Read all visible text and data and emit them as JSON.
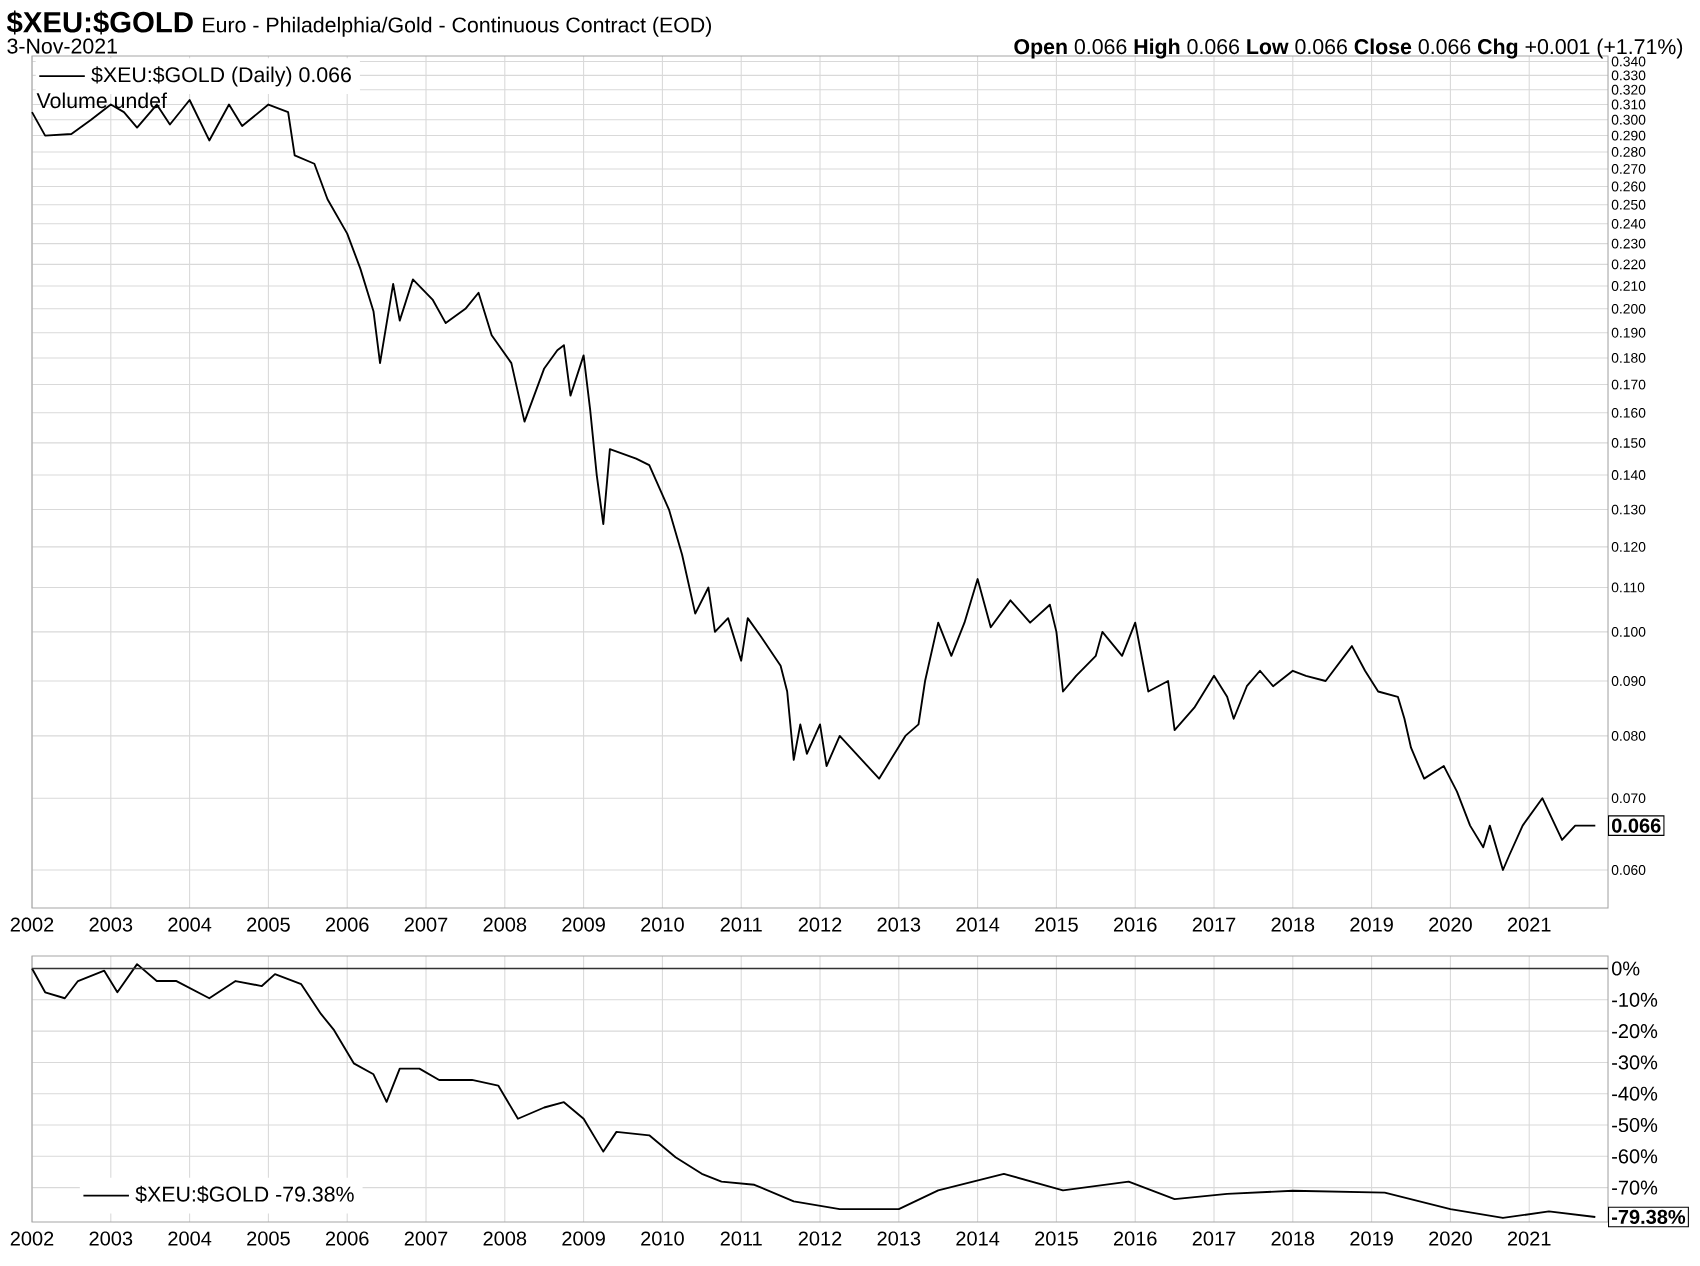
{
  "chart_data": [
    {
      "type": "line",
      "title": "$XEU:$GOLD",
      "subtitle": "Euro - Philadelphia/Gold - Continuous Contract (EOD)",
      "annotations": [
        "3-Nov-2021",
        "**Open** 0.066 **High** 0.066 **Low** 0.066 **Close** 0.066 **Chg** +0.001 (+1.71%)",
        "Volume undef",
        {
          "text": "0.066",
          "x": "2021-11-03",
          "y": 0.066
        }
      ],
      "x": [
        "2002-01",
        "2002-03",
        "2002-07",
        "2002-10",
        "2003-01",
        "2003-03",
        "2003-05",
        "2003-08",
        "2003-10",
        "2004-01",
        "2004-04",
        "2004-07",
        "2004-09",
        "2005-01",
        "2005-04",
        "2005-05",
        "2005-08",
        "2005-10",
        "2006-01",
        "2006-03",
        "2006-05",
        "2006-06",
        "2006-08",
        "2006-09",
        "2006-11",
        "2007-02",
        "2007-04",
        "2007-07",
        "2007-09",
        "2007-11",
        "2008-02",
        "2008-04",
        "2008-07",
        "2008-09",
        "2008-10",
        "2008-11",
        "2009-01",
        "2009-02",
        "2009-03",
        "2009-04",
        "2009-05",
        "2009-09",
        "2009-11",
        "2010-02",
        "2010-04",
        "2010-06",
        "2010-08",
        "2010-09",
        "2010-11",
        "2011-01",
        "2011-02",
        "2011-04",
        "2011-07",
        "2011-08",
        "2011-09",
        "2011-10",
        "2011-11",
        "2012-01",
        "2012-02",
        "2012-04",
        "2012-10",
        "2013-02",
        "2013-04",
        "2013-05",
        "2013-07",
        "2013-09",
        "2013-11",
        "2014-01",
        "2014-03",
        "2014-06",
        "2014-09",
        "2014-12",
        "2015-01",
        "2015-02",
        "2015-04",
        "2015-07",
        "2015-08",
        "2015-11",
        "2016-01",
        "2016-03",
        "2016-06",
        "2016-07",
        "2016-10",
        "2017-01",
        "2017-03",
        "2017-04",
        "2017-06",
        "2017-08",
        "2017-10",
        "2018-01",
        "2018-03",
        "2018-06",
        "2018-10",
        "2018-12",
        "2019-02",
        "2019-05",
        "2019-06",
        "2019-07",
        "2019-09",
        "2019-12",
        "2020-02",
        "2020-04",
        "2020-06",
        "2020-07",
        "2020-09",
        "2020-10",
        "2020-12",
        "2021-03",
        "2021-06",
        "2021-08",
        "2021-11-03"
      ],
      "series": [
        {
          "name": "$XEU:$GOLD (Daily) 0.066",
          "color": "#000000",
          "values": [
            0.305,
            0.29,
            0.291,
            0.3,
            0.31,
            0.305,
            0.295,
            0.31,
            0.297,
            0.313,
            0.287,
            0.31,
            0.296,
            0.31,
            0.305,
            0.278,
            0.273,
            0.253,
            0.235,
            0.218,
            0.199,
            0.178,
            0.211,
            0.195,
            0.213,
            0.204,
            0.194,
            0.2,
            0.207,
            0.189,
            0.178,
            0.157,
            0.176,
            0.183,
            0.185,
            0.166,
            0.181,
            0.161,
            0.14,
            0.126,
            0.148,
            0.145,
            0.143,
            0.13,
            0.118,
            0.104,
            0.11,
            0.1,
            0.103,
            0.094,
            0.103,
            0.099,
            0.093,
            0.088,
            0.076,
            0.082,
            0.077,
            0.082,
            0.075,
            0.08,
            0.073,
            0.08,
            0.082,
            0.09,
            0.102,
            0.095,
            0.102,
            0.112,
            0.101,
            0.107,
            0.102,
            0.106,
            0.1,
            0.088,
            0.091,
            0.095,
            0.1,
            0.095,
            0.102,
            0.088,
            0.09,
            0.081,
            0.085,
            0.091,
            0.087,
            0.083,
            0.089,
            0.092,
            0.089,
            0.092,
            0.091,
            0.09,
            0.097,
            0.092,
            0.088,
            0.087,
            0.083,
            0.078,
            0.073,
            0.075,
            0.071,
            0.066,
            0.063,
            0.066,
            0.06,
            0.062,
            0.066,
            0.07,
            0.064,
            0.066,
            0.066
          ]
        }
      ],
      "log": "y",
      "grid": true,
      "legend": "top left",
      "xlim": [
        "2002-01",
        "2022-01"
      ],
      "xticks": [
        "2002",
        "2003",
        "2004",
        "2005",
        "2006",
        "2007",
        "2008",
        "2009",
        "2010",
        "2011",
        "2012",
        "2013",
        "2014",
        "2015",
        "2016",
        "2017",
        "2018",
        "2019",
        "2020",
        "2021"
      ],
      "ylim": [
        0.0553,
        0.344
      ],
      "yticks": [
        {
          "value": 0.06,
          "label": "0.060"
        },
        {
          "value": 0.07,
          "label": "0.070"
        },
        {
          "value": 0.08,
          "label": "0.080"
        },
        {
          "value": 0.09,
          "label": "0.090"
        },
        {
          "value": 0.1,
          "label": "0.100"
        },
        {
          "value": 0.11,
          "label": "0.110"
        },
        {
          "value": 0.12,
          "label": "0.120"
        },
        {
          "value": 0.13,
          "label": "0.130"
        },
        {
          "value": 0.14,
          "label": "0.140"
        },
        {
          "value": 0.15,
          "label": "0.150"
        },
        {
          "value": 0.16,
          "label": "0.160"
        },
        {
          "value": 0.17,
          "label": "0.170"
        },
        {
          "value": 0.18,
          "label": "0.180"
        },
        {
          "value": 0.19,
          "label": "0.190"
        },
        {
          "value": 0.2,
          "label": "0.200"
        },
        {
          "value": 0.21,
          "label": "0.210"
        },
        {
          "value": 0.22,
          "label": "0.220"
        },
        {
          "value": 0.23,
          "label": "0.230"
        },
        {
          "value": 0.24,
          "label": "0.240"
        },
        {
          "value": 0.25,
          "label": "0.250"
        },
        {
          "value": 0.26,
          "label": "0.260"
        },
        {
          "value": 0.27,
          "label": "0.270"
        },
        {
          "value": 0.28,
          "label": "0.280"
        },
        {
          "value": 0.29,
          "label": "0.290"
        },
        {
          "value": 0.3,
          "label": "0.300"
        },
        {
          "value": 0.31,
          "label": "0.310"
        },
        {
          "value": 0.32,
          "label": "0.320"
        },
        {
          "value": 0.33,
          "label": "0.330"
        },
        {
          "value": 0.34,
          "label": "0.340"
        }
      ]
    },
    {
      "type": "line",
      "annotations": [
        {
          "text": "-79.38%",
          "x": "2021-11-03",
          "y": -79.38
        }
      ],
      "x": [
        "2002-01",
        "2002-03",
        "2002-06",
        "2002-08",
        "2002-12",
        "2003-02",
        "2003-05",
        "2003-08",
        "2003-11",
        "2004-04",
        "2004-08",
        "2004-12",
        "2005-02",
        "2005-06",
        "2005-09",
        "2005-11",
        "2006-02",
        "2006-05",
        "2006-07",
        "2006-09",
        "2006-12",
        "2007-03",
        "2007-08",
        "2007-12",
        "2008-03",
        "2008-07",
        "2008-10",
        "2009-01",
        "2009-04",
        "2009-06",
        "2009-11",
        "2010-03",
        "2010-07",
        "2010-10",
        "2011-03",
        "2011-09",
        "2012-04",
        "2013-01",
        "2013-07",
        "2014-05",
        "2015-02",
        "2015-12",
        "2016-07",
        "2017-03",
        "2018-01",
        "2019-03",
        "2020-01",
        "2020-09",
        "2021-04",
        "2021-11-03"
      ],
      "series": [
        {
          "name": "$XEU:$GOLD -79.38%",
          "color": "#000000",
          "values": [
            0,
            -7.6,
            -9.5,
            -4,
            -0.7,
            -7.6,
            1.4,
            -4,
            -4,
            -9.5,
            -4,
            -5.6,
            -1.8,
            -5,
            -14.5,
            -19.7,
            -30.3,
            -33.8,
            -42.6,
            -32,
            -32,
            -35.6,
            -35.6,
            -37.4,
            -48,
            -44.4,
            -42.7,
            -48,
            -58.5,
            -52.2,
            -53.3,
            -60.3,
            -65.6,
            -68.1,
            -69.1,
            -74.4,
            -76.9,
            -76.9,
            -70.9,
            -65.6,
            -70.9,
            -68.1,
            -73.7,
            -72,
            -71,
            -71.6,
            -76.9,
            -79.7,
            -77.6,
            -79.38
          ]
        }
      ],
      "grid": true,
      "legend": "bottom left",
      "ref_lines": [
        {
          "axis": "y",
          "value": 0
        }
      ],
      "xlim": [
        "2002-01",
        "2022-01"
      ],
      "xticks": [
        "2002",
        "2003",
        "2004",
        "2005",
        "2006",
        "2007",
        "2008",
        "2009",
        "2010",
        "2011",
        "2012",
        "2013",
        "2014",
        "2015",
        "2016",
        "2017",
        "2018",
        "2019",
        "2020",
        "2021"
      ],
      "ylim": [
        -81,
        4
      ],
      "yticks": [
        {
          "value": 0,
          "label": "0%"
        },
        {
          "value": -10,
          "label": "-10%"
        },
        {
          "value": -20,
          "label": "-20%"
        },
        {
          "value": -30,
          "label": "-30%"
        },
        {
          "value": -40,
          "label": "-40%"
        },
        {
          "value": -50,
          "label": "-50%"
        },
        {
          "value": -60,
          "label": "-60%"
        },
        {
          "value": -70,
          "label": "-70%"
        }
      ]
    }
  ]
}
